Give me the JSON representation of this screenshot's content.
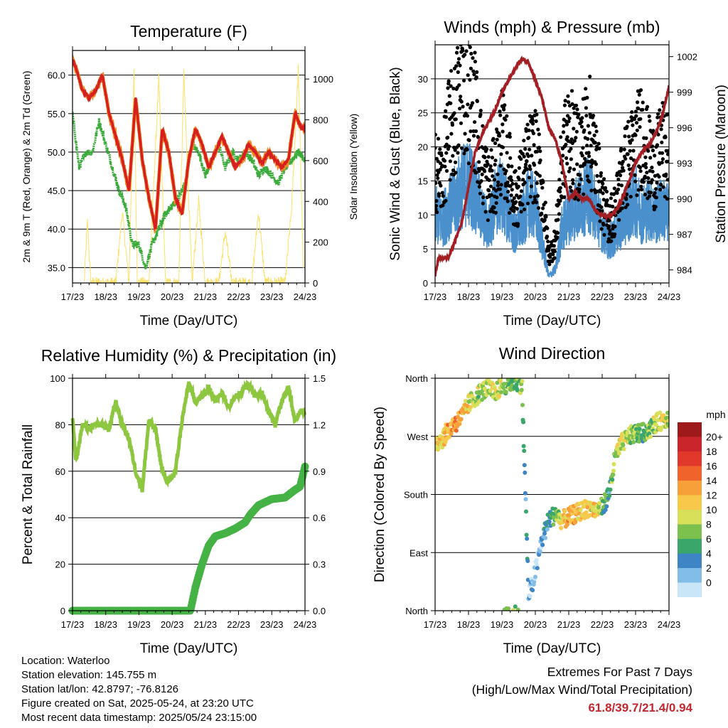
{
  "time_ticks": [
    "17/23",
    "18/23",
    "19/23",
    "20/23",
    "21/23",
    "22/23",
    "23/23",
    "24/23"
  ],
  "colors": {
    "temp_2m": "#d62020",
    "temp_9m": "#f08a24",
    "dewpoint": "#3aab3a",
    "solar": "#ffe066",
    "wind": "#4a90cc",
    "gust": "#000000",
    "pressure": "#a31f24",
    "rh": "#8dc63f",
    "precip": "#44b244"
  },
  "panels": {
    "temperature": {
      "title": "Temperature (F)",
      "ylabel_left": "2m & 9m T (Red, Orange) & 2m Td (Green)",
      "ylabel_right": "Solar Insolation (Yellow)",
      "xlabel": "Time (Day/UTC)",
      "left_ticks": [
        "35.0",
        "40.0",
        "45.0",
        "50.0",
        "55.0",
        "60.0"
      ],
      "right_ticks": [
        "0",
        "200",
        "400",
        "600",
        "800",
        "1000"
      ]
    },
    "winds": {
      "title": "Winds (mph) & Pressure (mb)",
      "ylabel_left": "Sonic Wind & Gust (Blue, Black)",
      "ylabel_right": "Station Pressure (Maroon)",
      "xlabel": "Time (Day/UTC)",
      "left_ticks": [
        "0",
        "5",
        "10",
        "15",
        "20",
        "25",
        "30"
      ],
      "right_ticks": [
        "984",
        "987",
        "990",
        "993",
        "996",
        "999",
        "1002"
      ]
    },
    "humidity": {
      "title": "Relative Humidity (%) & Precipitation (in)",
      "ylabel_left": "Percent & Total Rainfall",
      "xlabel": "Time (Day/UTC)",
      "left_ticks": [
        "0",
        "20",
        "40",
        "60",
        "80",
        "100"
      ],
      "right_ticks": [
        "0.0",
        "0.3",
        "0.6",
        "0.9",
        "1.2",
        "1.5"
      ]
    },
    "direction": {
      "title": "Wind Direction",
      "ylabel_left": "Direction (Colored By Speed)",
      "xlabel": "Time (Day/UTC)",
      "left_ticks": [
        "North",
        "East",
        "South",
        "West",
        "North"
      ],
      "legend_title": "mph",
      "legend_labels": [
        "20+",
        "18",
        "16",
        "14",
        "12",
        "10",
        "8",
        "6",
        "4",
        "2",
        "0"
      ],
      "legend_colors": [
        "#9e1a1a",
        "#c9252b",
        "#e0392b",
        "#f0642c",
        "#f7a03a",
        "#f7c84a",
        "#d8e05a",
        "#7cc04d",
        "#3aa66a",
        "#3d85c4",
        "#82bde8",
        "#c8e6f8"
      ]
    }
  },
  "chart_data": [
    {
      "type": "line",
      "title": "Temperature (F)",
      "x_ticks": [
        "17/23",
        "18/23",
        "19/23",
        "20/23",
        "21/23",
        "22/23",
        "23/23",
        "24/23"
      ],
      "xlabel": "Time (Day/UTC)",
      "ylabel": "2m & 9m T (Red, Orange) & 2m Td (Green)",
      "y2label": "Solar Insolation (Yellow)",
      "ylim": [
        33,
        63.2
      ],
      "y2lim": [
        0,
        1140
      ],
      "series": [
        {
          "name": "2m T",
          "color": "#d62020",
          "x": [
            0,
            0.1,
            0.3,
            0.5,
            0.7,
            0.9,
            1.1,
            1.3,
            1.5,
            1.7,
            1.9,
            2.1,
            2.3,
            2.5,
            2.7,
            2.9,
            3.1,
            3.3,
            3.5,
            3.7,
            3.9,
            4.1,
            4.3,
            4.5,
            4.7,
            4.9,
            5.1,
            5.3,
            5.5,
            5.7,
            5.9,
            6.1,
            6.3,
            6.5,
            6.7,
            6.9,
            7.0
          ],
          "y": [
            62,
            61,
            58,
            57,
            58,
            60,
            55,
            52,
            49,
            45,
            57,
            49,
            44,
            40,
            53,
            50,
            44,
            42,
            49,
            53,
            51,
            48,
            50,
            52,
            50,
            48,
            49,
            51,
            50,
            48.5,
            50,
            49,
            48,
            49,
            55,
            53,
            53
          ]
        },
        {
          "name": "2m Td",
          "color": "#3aab3a",
          "x": [
            0,
            0.2,
            0.4,
            0.6,
            0.8,
            1.0,
            1.2,
            1.4,
            1.6,
            1.8,
            2.0,
            2.2,
            2.4,
            2.6,
            2.8,
            3.0,
            3.2,
            3.4,
            3.6,
            3.8,
            4.0,
            4.2,
            4.4,
            4.6,
            4.8,
            5.0,
            5.2,
            5.4,
            5.6,
            5.8,
            6.0,
            6.2,
            6.4,
            6.6,
            6.8,
            7.0
          ],
          "y": [
            55,
            48,
            50,
            50,
            54,
            51,
            48,
            45,
            43,
            38,
            38,
            35,
            38,
            40,
            42,
            43,
            44,
            46,
            51,
            50,
            47,
            49,
            51,
            48,
            50,
            49,
            50,
            49,
            47,
            48,
            47,
            46,
            48,
            49,
            50,
            49
          ]
        },
        {
          "name": "Solar Insolation",
          "color": "#ffe066",
          "axis": "right",
          "x": [
            0.35,
            0.45,
            0.55,
            1.3,
            1.5,
            1.7,
            1.85,
            1.95,
            2.1,
            2.3,
            2.6,
            2.8,
            3.0,
            3.2,
            3.35,
            3.6,
            3.8,
            4.0,
            4.4,
            4.6,
            4.8,
            5.4,
            5.6,
            5.8,
            6.4,
            6.6,
            6.8,
            6.95
          ],
          "y": [
            0,
            300,
            0,
            0,
            350,
            0,
            1030,
            0,
            0,
            0,
            1000,
            0,
            0,
            0,
            1020,
            0,
            400,
            0,
            0,
            250,
            0,
            0,
            350,
            0,
            0,
            370,
            1050,
            50
          ]
        }
      ]
    },
    {
      "type": "line",
      "title": "Winds (mph) & Pressure (mb)",
      "x_ticks": [
        "17/23",
        "18/23",
        "19/23",
        "20/23",
        "21/23",
        "22/23",
        "23/23",
        "24/23"
      ],
      "xlabel": "Time (Day/UTC)",
      "ylabel": "Sonic Wind & Gust (Blue, Black)",
      "y2label": "Station Pressure (Maroon)",
      "ylim": [
        0,
        35
      ],
      "y2lim": [
        982.9,
        1003
      ],
      "series": [
        {
          "name": "Sonic Wind",
          "color": "#4a90cc",
          "x": [
            0,
            0.2,
            0.4,
            0.6,
            0.8,
            1.0,
            1.2,
            1.4,
            1.6,
            1.8,
            2.0,
            2.2,
            2.4,
            2.6,
            2.8,
            3.0,
            3.2,
            3.4,
            3.6,
            3.8,
            4.0,
            4.2,
            4.4,
            4.6,
            4.8,
            5.0,
            5.2,
            5.4,
            5.6,
            5.8,
            6.0,
            6.2,
            6.4,
            6.6,
            6.8,
            7.0
          ],
          "y": [
            10,
            9,
            11,
            12,
            14,
            15,
            13,
            10,
            8,
            12,
            13,
            10,
            7,
            9,
            12,
            11,
            6,
            1,
            2,
            8,
            10,
            11,
            12,
            13,
            11,
            8,
            6,
            7,
            9,
            11,
            12,
            10,
            11,
            10,
            11,
            10
          ]
        },
        {
          "name": "Gust",
          "color": "#000000",
          "x": [
            0,
            0.2,
            0.4,
            0.6,
            0.8,
            1.0,
            1.2,
            1.4,
            1.6,
            1.8,
            2.0,
            2.2,
            2.4,
            2.6,
            2.8,
            3.0,
            3.2,
            3.4,
            3.6,
            3.8,
            4.0,
            4.2,
            4.4,
            4.6,
            4.8,
            5.0,
            5.2,
            5.4,
            5.6,
            5.8,
            6.0,
            6.2,
            6.4,
            6.6,
            6.8,
            7.0
          ],
          "y": [
            17,
            15,
            22,
            24,
            30,
            28,
            25,
            18,
            14,
            16,
            21,
            17,
            12,
            15,
            18,
            19,
            14,
            4,
            6,
            18,
            22,
            19,
            20,
            23,
            18,
            12,
            9,
            11,
            16,
            18,
            20,
            22,
            18,
            17,
            20,
            18
          ]
        },
        {
          "name": "Station Pressure",
          "color": "#a31f24",
          "axis": "right",
          "x": [
            0,
            0.1,
            0.4,
            0.6,
            0.8,
            1.0,
            1.2,
            1.5,
            1.8,
            2.0,
            2.3,
            2.5,
            2.6,
            2.8,
            3.0,
            3.2,
            3.4,
            3.6,
            3.8,
            4.0,
            4.2,
            4.4,
            4.6,
            4.8,
            5.0,
            5.2,
            5.4,
            5.6,
            5.8,
            6.0,
            6.2,
            6.4,
            6.6,
            6.8,
            7.0
          ],
          "y": [
            983.5,
            985,
            985,
            986.5,
            988,
            991,
            994,
            996,
            997.5,
            999,
            1000.5,
            1001.5,
            1001.8,
            1001.5,
            1000,
            998.5,
            996,
            995,
            993,
            990,
            990.5,
            990,
            990,
            989,
            988.6,
            988.5,
            989,
            990,
            991.5,
            993,
            994,
            994.5,
            995.5,
            997,
            999.5
          ]
        }
      ]
    },
    {
      "type": "line",
      "title": "Relative Humidity (%) & Precipitation (in)",
      "x_ticks": [
        "17/23",
        "18/23",
        "19/23",
        "20/23",
        "21/23",
        "22/23",
        "23/23",
        "24/23"
      ],
      "xlabel": "Time (Day/UTC)",
      "ylabel": "Percent & Total Rainfall",
      "ylim": [
        0,
        100
      ],
      "y2lim": [
        0,
        1.5
      ],
      "series": [
        {
          "name": "Relative Humidity",
          "color": "#8dc63f",
          "x": [
            0,
            0.1,
            0.3,
            0.5,
            0.7,
            0.9,
            1.1,
            1.3,
            1.5,
            1.7,
            1.9,
            2.1,
            2.3,
            2.5,
            2.7,
            2.9,
            3.1,
            3.3,
            3.5,
            3.7,
            3.9,
            4.1,
            4.3,
            4.5,
            4.7,
            4.9,
            5.1,
            5.3,
            5.5,
            5.7,
            5.9,
            6.1,
            6.3,
            6.5,
            6.7,
            6.9,
            7.0
          ],
          "y": [
            84,
            64,
            80,
            78,
            80,
            80,
            78,
            90,
            80,
            74,
            60,
            52,
            82,
            78,
            60,
            55,
            60,
            82,
            98,
            90,
            92,
            96,
            90,
            94,
            88,
            92,
            94,
            98,
            92,
            94,
            86,
            80,
            90,
            96,
            82,
            86,
            85
          ]
        },
        {
          "name": "Total Precipitation",
          "color": "#44b244",
          "axis": "right",
          "x": [
            0,
            1,
            2,
            3,
            3.55,
            3.7,
            3.9,
            4.1,
            4.3,
            4.6,
            4.9,
            5.2,
            5.35,
            5.6,
            6.0,
            6.4,
            6.7,
            6.85,
            7.0
          ],
          "y": [
            0,
            0,
            0,
            0,
            0,
            0.15,
            0.3,
            0.42,
            0.48,
            0.5,
            0.53,
            0.57,
            0.62,
            0.68,
            0.72,
            0.73,
            0.78,
            0.8,
            0.93
          ]
        }
      ]
    },
    {
      "type": "scatter",
      "title": "Wind Direction",
      "x_ticks": [
        "17/23",
        "18/23",
        "19/23",
        "20/23",
        "21/23",
        "22/23",
        "23/23",
        "24/23"
      ],
      "xlabel": "Time (Day/UTC)",
      "ylabel": "Direction (Colored By Speed)",
      "y_ticks": [
        "North",
        "East",
        "South",
        "West",
        "North"
      ],
      "ylim": [
        0,
        360
      ],
      "colorbar": {
        "title": "mph",
        "labels": [
          "20+",
          "18",
          "16",
          "14",
          "12",
          "10",
          "8",
          "6",
          "4",
          "2",
          "0"
        ]
      },
      "series": [
        {
          "name": "Wind Direction",
          "x": [
            0,
            0.2,
            0.4,
            0.6,
            0.8,
            1.0,
            1.2,
            1.4,
            1.6,
            1.8,
            2.0,
            2.2,
            2.4,
            2.6,
            2.8,
            3.0,
            3.2,
            3.4,
            3.6,
            3.8,
            4.0,
            4.2,
            4.4,
            4.6,
            4.8,
            5.0,
            5.2,
            5.3,
            5.4,
            5.6,
            5.8,
            6.0,
            6.2,
            6.4,
            6.6,
            6.8,
            7.0
          ],
          "y": [
            260,
            265,
            280,
            290,
            300,
            320,
            330,
            340,
            345,
            335,
            350,
            350,
            355,
            350,
            20,
            60,
            110,
            140,
            150,
            140,
            145,
            150,
            155,
            160,
            155,
            160,
            180,
            210,
            240,
            260,
            270,
            275,
            275,
            280,
            290,
            295,
            300
          ],
          "speed": [
            12,
            13,
            14,
            16,
            15,
            12,
            10,
            9,
            11,
            12,
            10,
            9,
            8,
            9,
            3,
            2,
            4,
            6,
            8,
            12,
            14,
            14,
            13,
            12,
            12,
            9,
            5,
            9,
            10,
            11,
            10,
            9,
            8,
            9,
            10,
            11,
            9
          ]
        }
      ]
    }
  ],
  "footer": {
    "location": "Location: Waterloo",
    "elevation": "Station elevation: 145.755 m",
    "latlon": "Station lat/lon: 42.8797; -76.8126",
    "created": "Figure created on Sat, 2025-05-24, at 23:20 UTC",
    "timestamp": "Most recent data timestamp: 2025/05/24 23:15:00"
  },
  "extremes": {
    "title": "Extremes For Past 7 Days",
    "subtitle": "(High/Low/Max Wind/Total Precipitation)",
    "values": "61.8/39.7/21.4/0.94"
  }
}
